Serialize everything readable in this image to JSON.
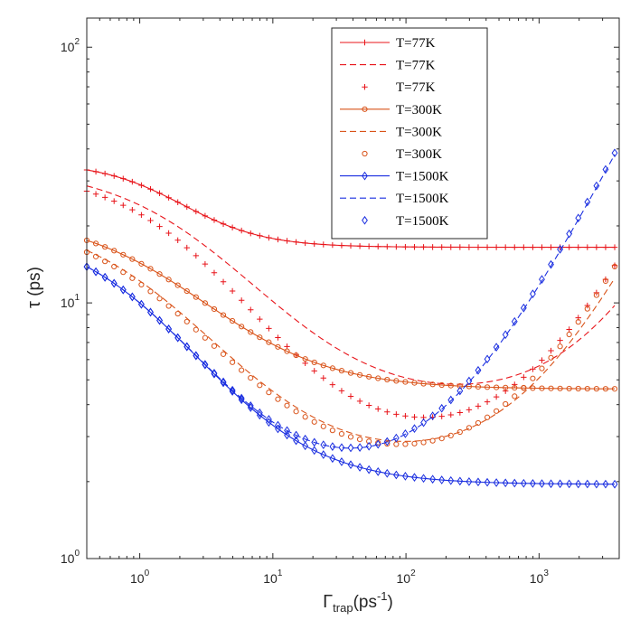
{
  "chart_data": {
    "type": "line",
    "xscale": "log",
    "yscale": "log",
    "xlim": [
      0.4,
      4000
    ],
    "ylim": [
      1,
      130
    ],
    "xlabel": {
      "symbol": "Γ",
      "sub": "trap",
      "unit": "(ps",
      "sup": "-1",
      "close": ")"
    },
    "ylabel": {
      "symbol": "τ",
      "unit": " (ps)"
    },
    "xticks": [
      {
        "value": 1,
        "base": "10",
        "exp": "0"
      },
      {
        "value": 10,
        "base": "10",
        "exp": "1"
      },
      {
        "value": 100,
        "base": "10",
        "exp": "2"
      },
      {
        "value": 1000,
        "base": "10",
        "exp": "3"
      }
    ],
    "yticks": [
      {
        "value": 1,
        "base": "10",
        "exp": "0"
      },
      {
        "value": 10,
        "base": "10",
        "exp": "1"
      },
      {
        "value": 100,
        "base": "10",
        "exp": "2"
      }
    ],
    "legend_position": "top-right",
    "colors": {
      "T77": "#e8141a",
      "T300": "#d95319",
      "T1500": "#1a2ee0"
    },
    "legend": [
      {
        "label": "T=77K",
        "style": "solid-plus",
        "color": "#e8141a"
      },
      {
        "label": "T=77K",
        "style": "dashed",
        "color": "#e8141a"
      },
      {
        "label": "T=77K",
        "style": "plus",
        "color": "#e8141a"
      },
      {
        "label": "T=300K",
        "style": "solid-circle",
        "color": "#d95319"
      },
      {
        "label": "T=300K",
        "style": "dashed",
        "color": "#d95319"
      },
      {
        "label": "T=300K",
        "style": "circle",
        "color": "#d95319"
      },
      {
        "label": "T=1500K",
        "style": "solid-diamond",
        "color": "#1a2ee0"
      },
      {
        "label": "T=1500K",
        "style": "dashed",
        "color": "#1a2ee0"
      },
      {
        "label": "T=1500K",
        "style": "diamond",
        "color": "#1a2ee0"
      }
    ],
    "series": [
      {
        "name": "T=77K",
        "style": "solid-plus",
        "color": "#e8141a",
        "model": {
          "floor": 16.5,
          "amp": 19,
          "gamma0": 1.6,
          "p": 1.4,
          "rise": 0
        }
      },
      {
        "name": "T=77K",
        "style": "dashed",
        "color": "#e8141a",
        "model": {
          "floor": 4.0,
          "amp": 30,
          "gamma0": 2.2,
          "p": 0.9,
          "rise": 0.00155
        }
      },
      {
        "name": "T=77K",
        "style": "plus",
        "color": "#e8141a",
        "model": {
          "floor": 2.7,
          "amp": 30,
          "gamma0": 1.9,
          "p": 0.98,
          "rise": 0.00305
        }
      },
      {
        "name": "T=300K",
        "style": "solid-circle",
        "color": "#d95319",
        "model": {
          "floor": 4.6,
          "amp": 17.2,
          "gamma0": 1.33,
          "p": 0.93,
          "rise": 0
        }
      },
      {
        "name": "T=300K",
        "style": "dashed",
        "color": "#d95319",
        "model": {
          "floor": 2.3,
          "amp": 19.6,
          "gamma0": 1.02,
          "p": 0.91,
          "rise": 0.00275
        }
      },
      {
        "name": "T=300K",
        "style": "circle",
        "color": "#d95319",
        "model": {
          "floor": 2.2,
          "amp": 19.6,
          "gamma0": 0.98,
          "p": 0.91,
          "rise": 0.00315
        }
      },
      {
        "name": "T=1500K",
        "style": "solid-diamond",
        "color": "#1a2ee0",
        "model": {
          "floor": 1.95,
          "amp": 17.5,
          "gamma0": 0.85,
          "p": 1.0,
          "rise": 0
        }
      },
      {
        "name": "T=1500K",
        "style": "dashed",
        "color": "#1a2ee0",
        "model": {
          "floor": 1.95,
          "amp": 17.5,
          "gamma0": 0.85,
          "p": 1.0,
          "rise": 0.00975
        }
      },
      {
        "name": "T=1500K",
        "style": "diamond",
        "color": "#1a2ee0",
        "model": {
          "floor": 1.95,
          "amp": 17.5,
          "gamma0": 0.85,
          "p": 1.0,
          "rise": 0.0099
        }
      }
    ]
  }
}
